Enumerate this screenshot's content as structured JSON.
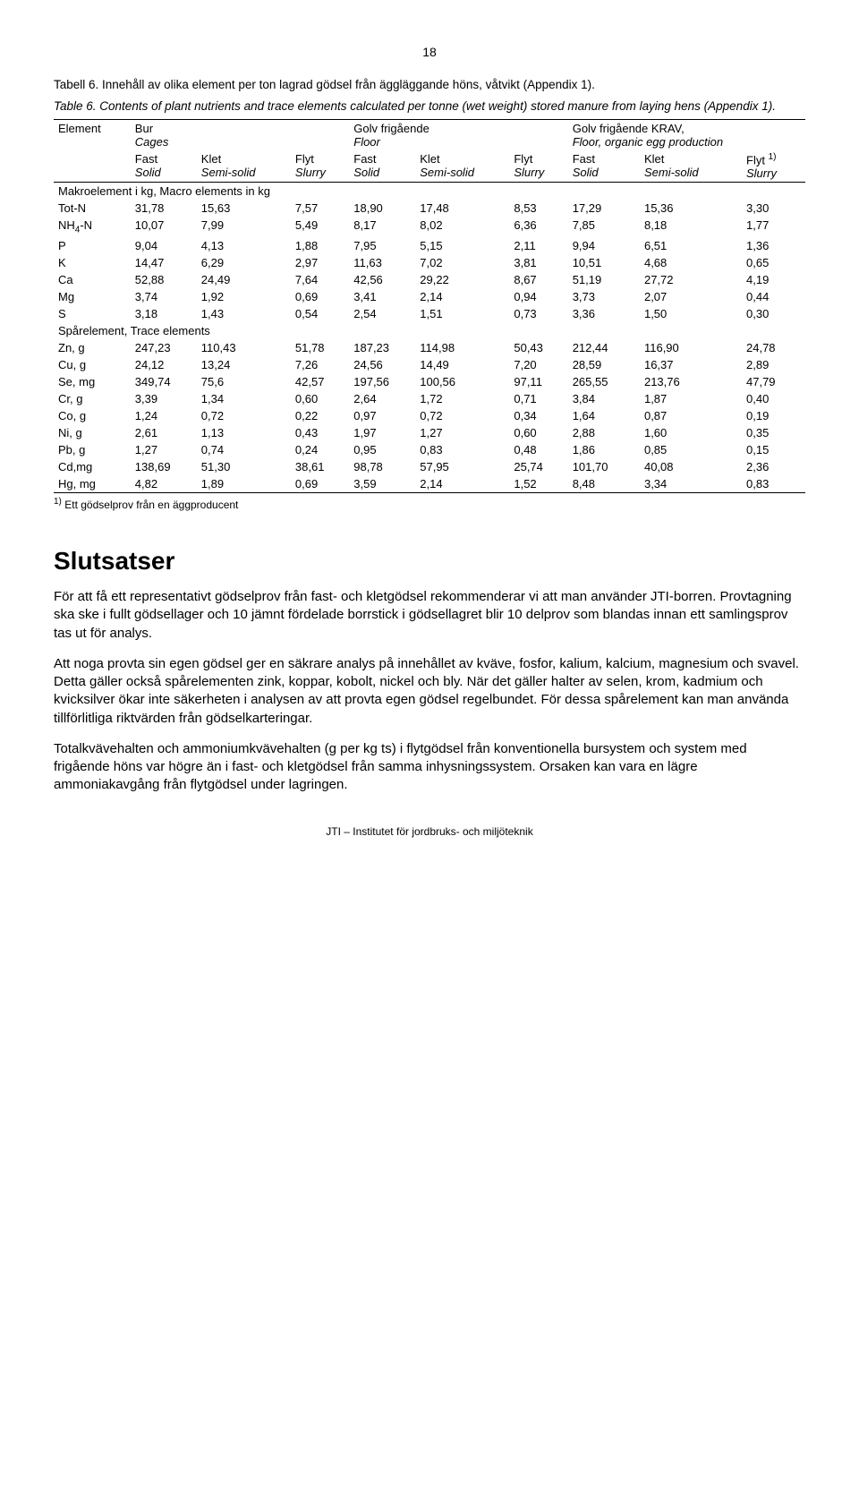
{
  "page_number": "18",
  "caption_sv": "Tabell 6. Innehåll av olika element per ton lagrad gödsel från äggläggande höns, våtvikt (Appendix 1).",
  "caption_en": "Table 6. Contents of plant nutrients and trace elements calculated per tonne (wet weight) stored manure from laying hens (Appendix 1).",
  "headers": {
    "element": "Element",
    "group1_a": "Bur",
    "group1_b": "Cages",
    "group2_a": "Golv frigående",
    "group2_b": "Floor",
    "group3_a": "Golv frigående KRAV,",
    "group3_b": "Floor, organic egg production",
    "fast": "Fast",
    "solid": "Solid",
    "klet": "Klet",
    "semisolid": "Semi-solid",
    "flyt": "Flyt",
    "slurry": "Slurry",
    "flyt1": "Flyt ",
    "flyt1_sup": "1)"
  },
  "section1": "Makroelement i kg, Macro elements in kg",
  "section2": "Spårelement, Trace elements",
  "rows_macro": [
    {
      "label": "Tot-N",
      "v": [
        "31,78",
        "15,63",
        "7,57",
        "18,90",
        "17,48",
        "8,53",
        "17,29",
        "15,36",
        "3,30"
      ]
    },
    {
      "label": "NH₄-N",
      "v": [
        "10,07",
        "7,99",
        "5,49",
        "8,17",
        "8,02",
        "6,36",
        "7,85",
        "8,18",
        "1,77"
      ]
    },
    {
      "label": "P",
      "v": [
        "9,04",
        "4,13",
        "1,88",
        "7,95",
        "5,15",
        "2,11",
        "9,94",
        "6,51",
        "1,36"
      ]
    },
    {
      "label": "K",
      "v": [
        "14,47",
        "6,29",
        "2,97",
        "11,63",
        "7,02",
        "3,81",
        "10,51",
        "4,68",
        "0,65"
      ]
    },
    {
      "label": "Ca",
      "v": [
        "52,88",
        "24,49",
        "7,64",
        "42,56",
        "29,22",
        "8,67",
        "51,19",
        "27,72",
        "4,19"
      ]
    },
    {
      "label": "Mg",
      "v": [
        "3,74",
        "1,92",
        "0,69",
        "3,41",
        "2,14",
        "0,94",
        "3,73",
        "2,07",
        "0,44"
      ]
    },
    {
      "label": "S",
      "v": [
        "3,18",
        "1,43",
        "0,54",
        "2,54",
        "1,51",
        "0,73",
        "3,36",
        "1,50",
        "0,30"
      ]
    }
  ],
  "rows_trace": [
    {
      "label": "Zn, g",
      "v": [
        "247,23",
        "110,43",
        "51,78",
        "187,23",
        "114,98",
        "50,43",
        "212,44",
        "116,90",
        "24,78"
      ]
    },
    {
      "label": "Cu, g",
      "v": [
        "24,12",
        "13,24",
        "7,26",
        "24,56",
        "14,49",
        "7,20",
        "28,59",
        "16,37",
        "2,89"
      ]
    },
    {
      "label": "Se, mg",
      "v": [
        "349,74",
        "75,6",
        "42,57",
        "197,56",
        "100,56",
        "97,11",
        "265,55",
        "213,76",
        "47,79"
      ]
    },
    {
      "label": "Cr, g",
      "v": [
        "3,39",
        "1,34",
        "0,60",
        "2,64",
        "1,72",
        "0,71",
        "3,84",
        "1,87",
        "0,40"
      ]
    },
    {
      "label": "Co, g",
      "v": [
        "1,24",
        "0,72",
        "0,22",
        "0,97",
        "0,72",
        "0,34",
        "1,64",
        "0,87",
        "0,19"
      ]
    },
    {
      "label": "Ni, g",
      "v": [
        "2,61",
        "1,13",
        "0,43",
        "1,97",
        "1,27",
        "0,60",
        "2,88",
        "1,60",
        "0,35"
      ]
    },
    {
      "label": "Pb, g",
      "v": [
        "1,27",
        "0,74",
        "0,24",
        "0,95",
        "0,83",
        "0,48",
        "1,86",
        "0,85",
        "0,15"
      ]
    },
    {
      "label": "Cd,mg",
      "v": [
        "138,69",
        "51,30",
        "38,61",
        "98,78",
        "57,95",
        "25,74",
        "101,70",
        "40,08",
        "2,36"
      ]
    },
    {
      "label": "Hg, mg",
      "v": [
        "4,82",
        "1,89",
        "0,69",
        "3,59",
        "2,14",
        "1,52",
        "8,48",
        "3,34",
        "0,83"
      ]
    }
  ],
  "footnote_sup": "1)",
  "footnote": " Ett gödselprov från en äggproducent",
  "heading": "Slutsatser",
  "para1": "För att få ett representativt gödselprov från fast- och kletgödsel rekommenderar vi att man använder JTI-borren. Provtagning ska ske i fullt gödsellager och 10 jämnt fördelade borrstick i gödsellagret blir 10 delprov som blandas innan ett samlingsprov tas ut för analys.",
  "para2": "Att noga provta sin egen gödsel ger en säkrare analys på innehållet av kväve, fosfor, kalium, kalcium, magnesium och svavel. Detta gäller också spårelementen zink, koppar, kobolt, nickel och bly. När det gäller halter av selen, krom, kadmium och kvicksilver ökar inte säkerheten i analysen av att provta egen gödsel regelbundet. För dessa spårelement kan man använda tillförlitliga riktvärden från gödselkarteringar.",
  "para3": "Totalkvävehalten och ammoniumkvävehalten (g per kg ts) i flytgödsel från konventionella bursystem och system med frigående höns var högre än i fast- och kletgödsel från samma inhysningssystem. Orsaken kan vara en lägre ammoniakavgång från flytgödsel under lagringen.",
  "footer": "JTI – Institutet för jordbruks- och miljöteknik"
}
